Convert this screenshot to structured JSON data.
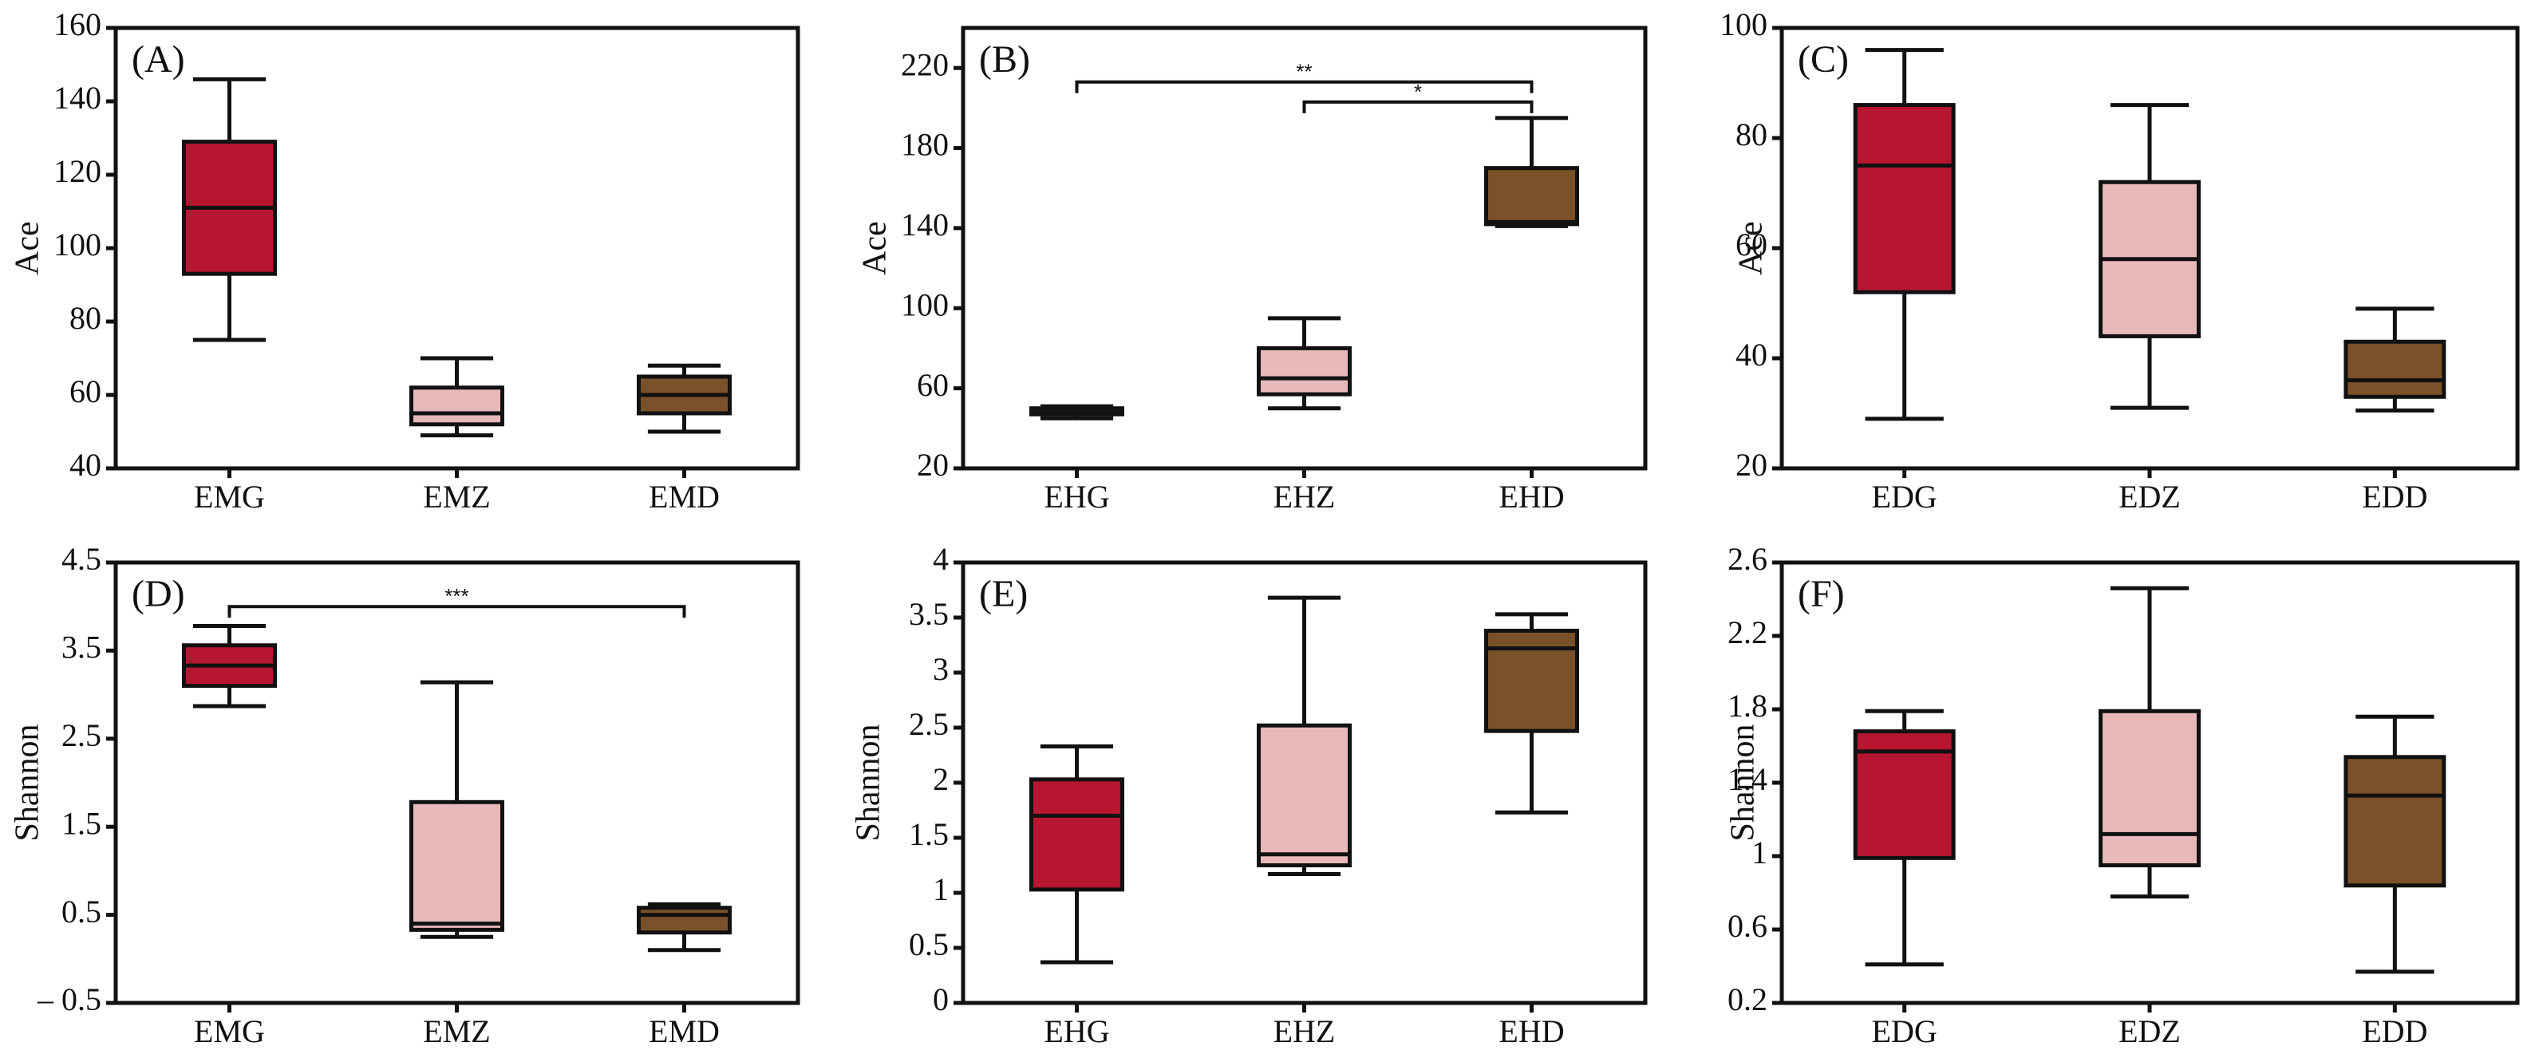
{
  "colors": {
    "G": "#b71631",
    "Z": "#e8b9b9",
    "D": "#7a5128",
    "stroke": "#111111"
  },
  "chart_data": [
    {
      "type": "boxplot",
      "panel": "(A)",
      "ylabel": "Ace",
      "ylim": [
        40,
        160
      ],
      "yticks": [
        "40",
        "60",
        "80",
        "100",
        "120",
        "140",
        "160"
      ],
      "categories": [
        "EMG",
        "EMZ",
        "EMD"
      ],
      "boxes": [
        {
          "min": 75,
          "q1": 93,
          "median": 111,
          "q3": 129,
          "max": 146
        },
        {
          "min": 49,
          "q1": 52,
          "median": 55,
          "q3": 62,
          "max": 70
        },
        {
          "min": 50,
          "q1": 55,
          "median": 60,
          "q3": 65,
          "max": 68
        }
      ],
      "significance": []
    },
    {
      "type": "boxplot",
      "panel": "(B)",
      "ylabel": "Ace",
      "ylim": [
        20,
        240
      ],
      "yticks": [
        "20",
        "60",
        "100",
        "140",
        "180",
        "220"
      ],
      "categories": [
        "EHG",
        "EHZ",
        "EHD"
      ],
      "boxes": [
        {
          "min": 45,
          "q1": 47,
          "median": 48,
          "q3": 50,
          "max": 51
        },
        {
          "min": 50,
          "q1": 57,
          "median": 65,
          "q3": 80,
          "max": 95
        },
        {
          "min": 141,
          "q1": 142,
          "median": 143,
          "q3": 170,
          "max": 195
        }
      ],
      "significance": [
        {
          "from": 0,
          "to": 2,
          "label": "**",
          "y": 213
        },
        {
          "from": 1,
          "to": 2,
          "label": "*",
          "y": 203
        }
      ]
    },
    {
      "type": "boxplot",
      "panel": "(C)",
      "ylabel": "Ace",
      "ylim": [
        20,
        100
      ],
      "yticks": [
        "20",
        "40",
        "60",
        "80",
        "100"
      ],
      "categories": [
        "EDG",
        "EDZ",
        "EDD"
      ],
      "boxes": [
        {
          "min": 29,
          "q1": 52,
          "median": 75,
          "q3": 86,
          "max": 96
        },
        {
          "min": 31,
          "q1": 44,
          "median": 58,
          "q3": 72,
          "max": 86
        },
        {
          "min": 30.5,
          "q1": 33,
          "median": 36,
          "q3": 43,
          "max": 49
        }
      ],
      "significance": []
    },
    {
      "type": "boxplot",
      "panel": "(D)",
      "ylabel": "Shannon",
      "ylim": [
        -0.5,
        4.5
      ],
      "yticks": [
        "– 0.5",
        "0.5",
        "1.5",
        "2.5",
        "3.5",
        "4.5"
      ],
      "ytick_values": [
        -0.5,
        0.5,
        1.5,
        2.5,
        3.5,
        4.5
      ],
      "categories": [
        "EMG",
        "EMZ",
        "EMD"
      ],
      "boxes": [
        {
          "min": 2.87,
          "q1": 3.1,
          "median": 3.33,
          "q3": 3.56,
          "max": 3.78
        },
        {
          "min": 0.25,
          "q1": 0.33,
          "median": 0.4,
          "q3": 1.78,
          "max": 3.14
        },
        {
          "min": 0.1,
          "q1": 0.3,
          "median": 0.5,
          "q3": 0.58,
          "max": 0.62
        }
      ],
      "significance": [
        {
          "from": 0,
          "to": 2,
          "label": "***",
          "y": 4.0
        }
      ]
    },
    {
      "type": "boxplot",
      "panel": "(E)",
      "ylabel": "Shannon",
      "ylim": [
        0,
        4
      ],
      "yticks": [
        "0",
        "0.5",
        "1",
        "1.5",
        "2",
        "2.5",
        "3",
        "3.5",
        "4"
      ],
      "categories": [
        "EHG",
        "EHZ",
        "EHD"
      ],
      "boxes": [
        {
          "min": 0.37,
          "q1": 1.03,
          "median": 1.7,
          "q3": 2.03,
          "max": 2.33
        },
        {
          "min": 1.17,
          "q1": 1.25,
          "median": 1.35,
          "q3": 2.52,
          "max": 3.68
        },
        {
          "min": 1.73,
          "q1": 2.47,
          "median": 3.22,
          "q3": 3.38,
          "max": 3.53
        }
      ],
      "significance": []
    },
    {
      "type": "boxplot",
      "panel": "(F)",
      "ylabel": "Shannon",
      "ylim": [
        0.2,
        2.6
      ],
      "yticks": [
        "0.2",
        "0.6",
        "1",
        "1.4",
        "1.8",
        "2.2",
        "2.6"
      ],
      "categories": [
        "EDG",
        "EDZ",
        "EDD"
      ],
      "boxes": [
        {
          "min": 0.41,
          "q1": 0.99,
          "median": 1.57,
          "q3": 1.68,
          "max": 1.79
        },
        {
          "min": 0.78,
          "q1": 0.95,
          "median": 1.12,
          "q3": 1.79,
          "max": 2.46
        },
        {
          "min": 0.37,
          "q1": 0.84,
          "median": 1.33,
          "q3": 1.54,
          "max": 1.76
        }
      ],
      "significance": []
    }
  ]
}
